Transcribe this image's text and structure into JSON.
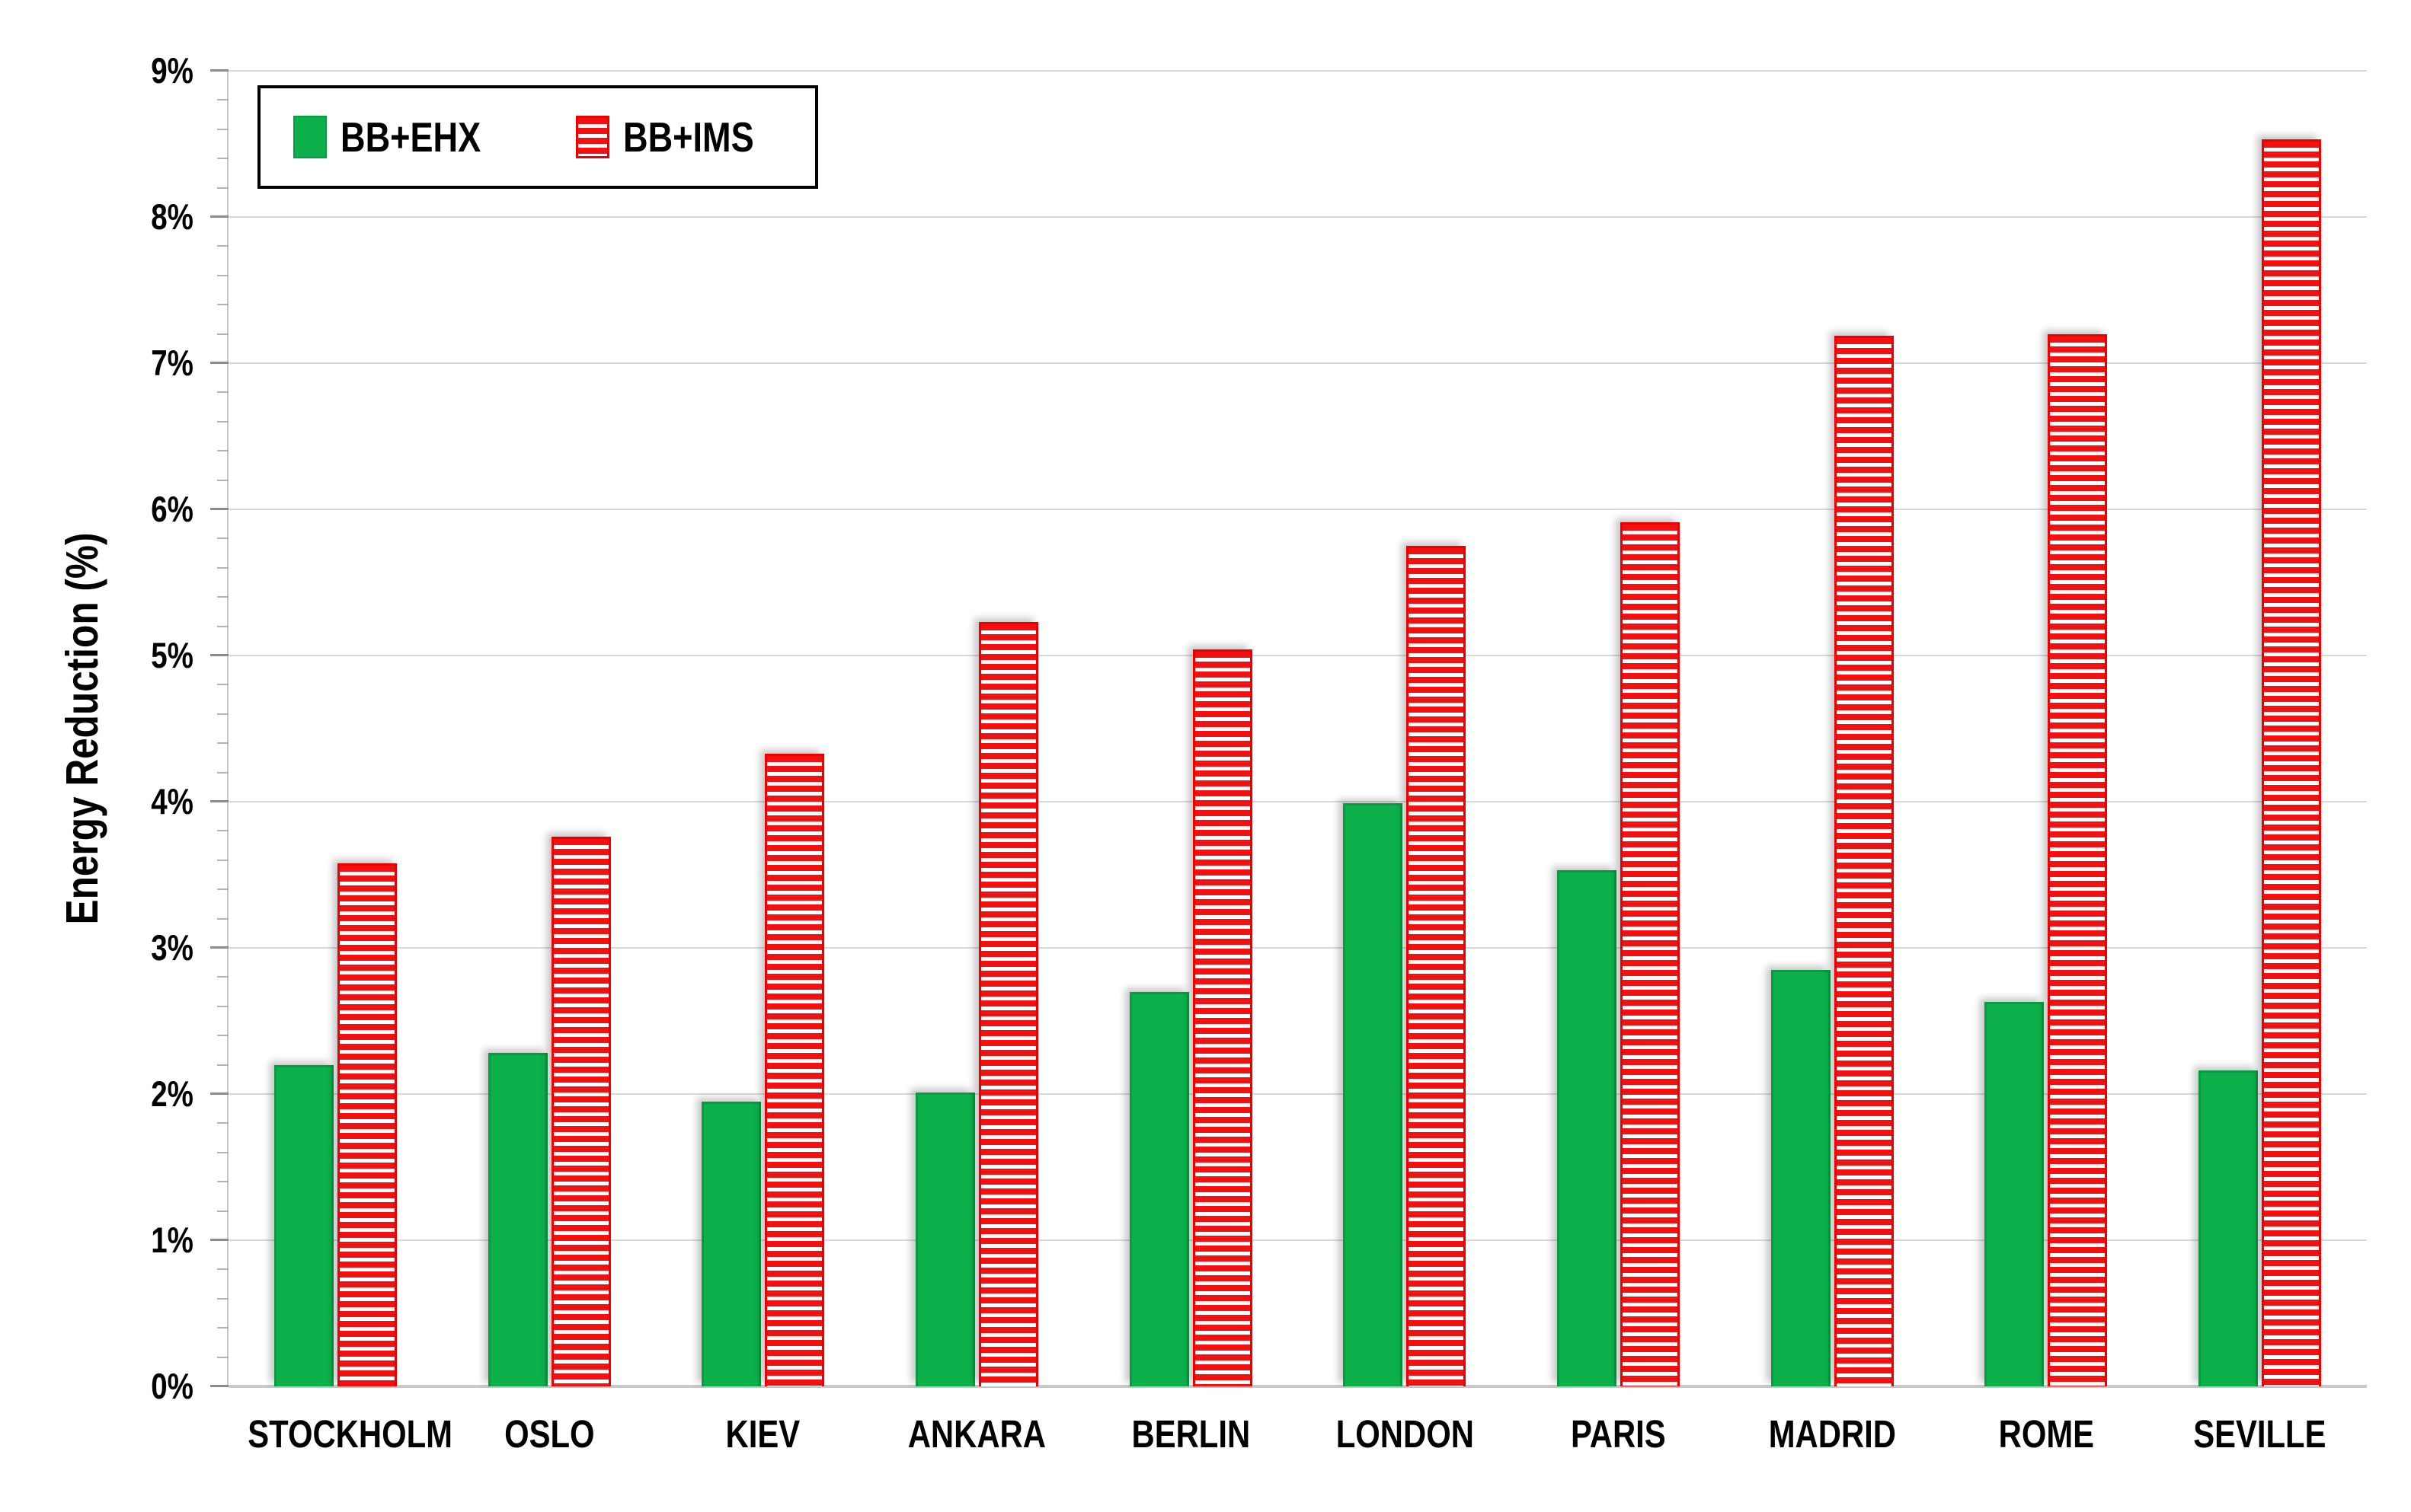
{
  "chart_data": {
    "type": "bar",
    "title": "",
    "categories": [
      "STOCKHOLM",
      "OSLO",
      "KIEV",
      "ANKARA",
      "BERLIN",
      "LONDON",
      "PARIS",
      "MADRID",
      "ROME",
      "SEVILLE"
    ],
    "series": [
      {
        "name": "BB+EHX",
        "pattern": "solid",
        "color": "#0db14b",
        "border_color": "#089b41",
        "values": [
          2.2,
          2.28,
          1.95,
          2.01,
          2.7,
          3.99,
          3.53,
          2.85,
          2.63,
          2.16
        ]
      },
      {
        "name": "BB+IMS",
        "pattern": "horizontal-stripes",
        "color": "#f21010",
        "border_color": "#ea0000",
        "values": [
          3.58,
          3.76,
          4.33,
          5.23,
          5.04,
          5.75,
          5.91,
          7.19,
          7.2,
          8.53
        ]
      }
    ],
    "xlabel": "",
    "ylabel": "Energy Reduction (%)",
    "ylim": [
      0,
      9
    ],
    "ytick_step": 1,
    "ytick_minor_step": 0.2,
    "ytick_suffix": "%",
    "ytick_labels": [
      "0%",
      "1%",
      "2%",
      "3%",
      "4%",
      "5%",
      "6%",
      "7%",
      "8%",
      "9%"
    ],
    "grid": "horizontal-major",
    "gridline_color": "#d9d9d9",
    "axis_line_color": "#c9c9c9",
    "legend_position": "top-left",
    "legend_entries": [
      "BB+EHX",
      "BB+IMS"
    ]
  }
}
